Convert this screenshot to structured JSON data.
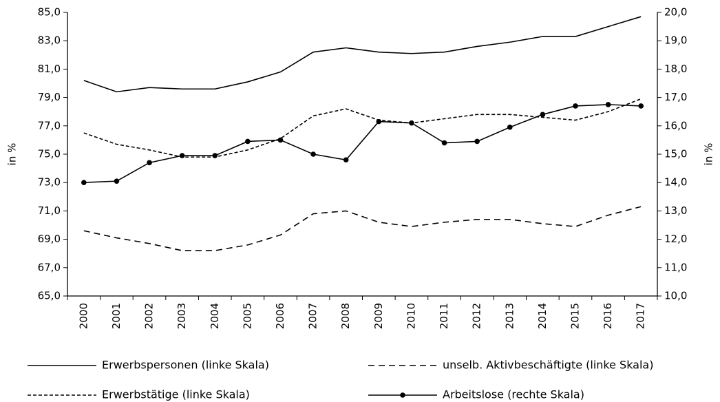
{
  "chart_data": {
    "type": "line",
    "categories": [
      "2000",
      "2001",
      "2002",
      "2003",
      "2004",
      "2005",
      "2006",
      "2007",
      "2008",
      "2009",
      "2010",
      "2011",
      "2012",
      "2013",
      "2014",
      "2015",
      "2016",
      "2017"
    ],
    "series": [
      {
        "name": "Erwerbspersonen (linke Skala)",
        "color": "#000000",
        "dash": "solid",
        "values": [
          80.2,
          79.4,
          79.7,
          79.6,
          79.6,
          80.1,
          80.8,
          82.2,
          82.5,
          82.2,
          82.1,
          82.2,
          82.6,
          82.9,
          83.3,
          83.3,
          84.0,
          84.7
        ]
      },
      {
        "name": "unselb. Aktivbeschäftigte (linke Skala)",
        "color": "#000000",
        "dash": "long",
        "values": [
          69.6,
          69.1,
          68.7,
          68.2,
          68.2,
          68.6,
          69.3,
          70.8,
          71.0,
          70.2,
          69.9,
          70.2,
          70.4,
          70.4,
          70.1,
          69.9,
          70.7,
          71.3
        ]
      },
      {
        "name": "Erwerbstätige (linke Skala)",
        "color": "#000000",
        "dash": "short",
        "values": [
          76.5,
          75.7,
          75.3,
          74.8,
          74.8,
          75.3,
          76.1,
          77.7,
          78.2,
          77.4,
          77.2,
          77.5,
          77.8,
          77.8,
          77.6,
          77.4,
          78.0,
          78.9
        ]
      },
      {
        "name": "Arbeitslose (rechte Skala)",
        "color": "#000000",
        "dash": "solid",
        "markers": true,
        "axis": "y2",
        "values": [
          14.0,
          14.05,
          14.7,
          14.95,
          14.95,
          15.45,
          15.5,
          15.0,
          14.8,
          16.15,
          16.1,
          15.4,
          15.45,
          15.95,
          16.4,
          16.7,
          16.75,
          16.7
        ]
      }
    ],
    "ylabel": "in %",
    "y2label": "in %",
    "ylim": [
      65,
      85
    ],
    "yticks": [
      {
        "value": 65,
        "label": "65,0"
      },
      {
        "value": 67,
        "label": "67,0"
      },
      {
        "value": 69,
        "label": "69,0"
      },
      {
        "value": 71,
        "label": "71,0"
      },
      {
        "value": 73,
        "label": "73,0"
      },
      {
        "value": 75,
        "label": "75,0"
      },
      {
        "value": 77,
        "label": "77,0"
      },
      {
        "value": 79,
        "label": "79,0"
      },
      {
        "value": 81,
        "label": "81,0"
      },
      {
        "value": 83,
        "label": "83,0"
      },
      {
        "value": 85,
        "label": "85,0"
      }
    ],
    "y2lim": [
      10,
      20
    ],
    "y2ticks": [
      {
        "value": 10,
        "label": "10,0"
      },
      {
        "value": 11,
        "label": "11,0"
      },
      {
        "value": 12,
        "label": "12,0"
      },
      {
        "value": 13,
        "label": "13,0"
      },
      {
        "value": 14,
        "label": "14,0"
      },
      {
        "value": 15,
        "label": "15,0"
      },
      {
        "value": 16,
        "label": "16,0"
      },
      {
        "value": 17,
        "label": "17,0"
      },
      {
        "value": 18,
        "label": "18,0"
      },
      {
        "value": 19,
        "label": "19,0"
      },
      {
        "value": 20,
        "label": "20,0"
      }
    ],
    "grid": false,
    "legend": "bottom"
  }
}
